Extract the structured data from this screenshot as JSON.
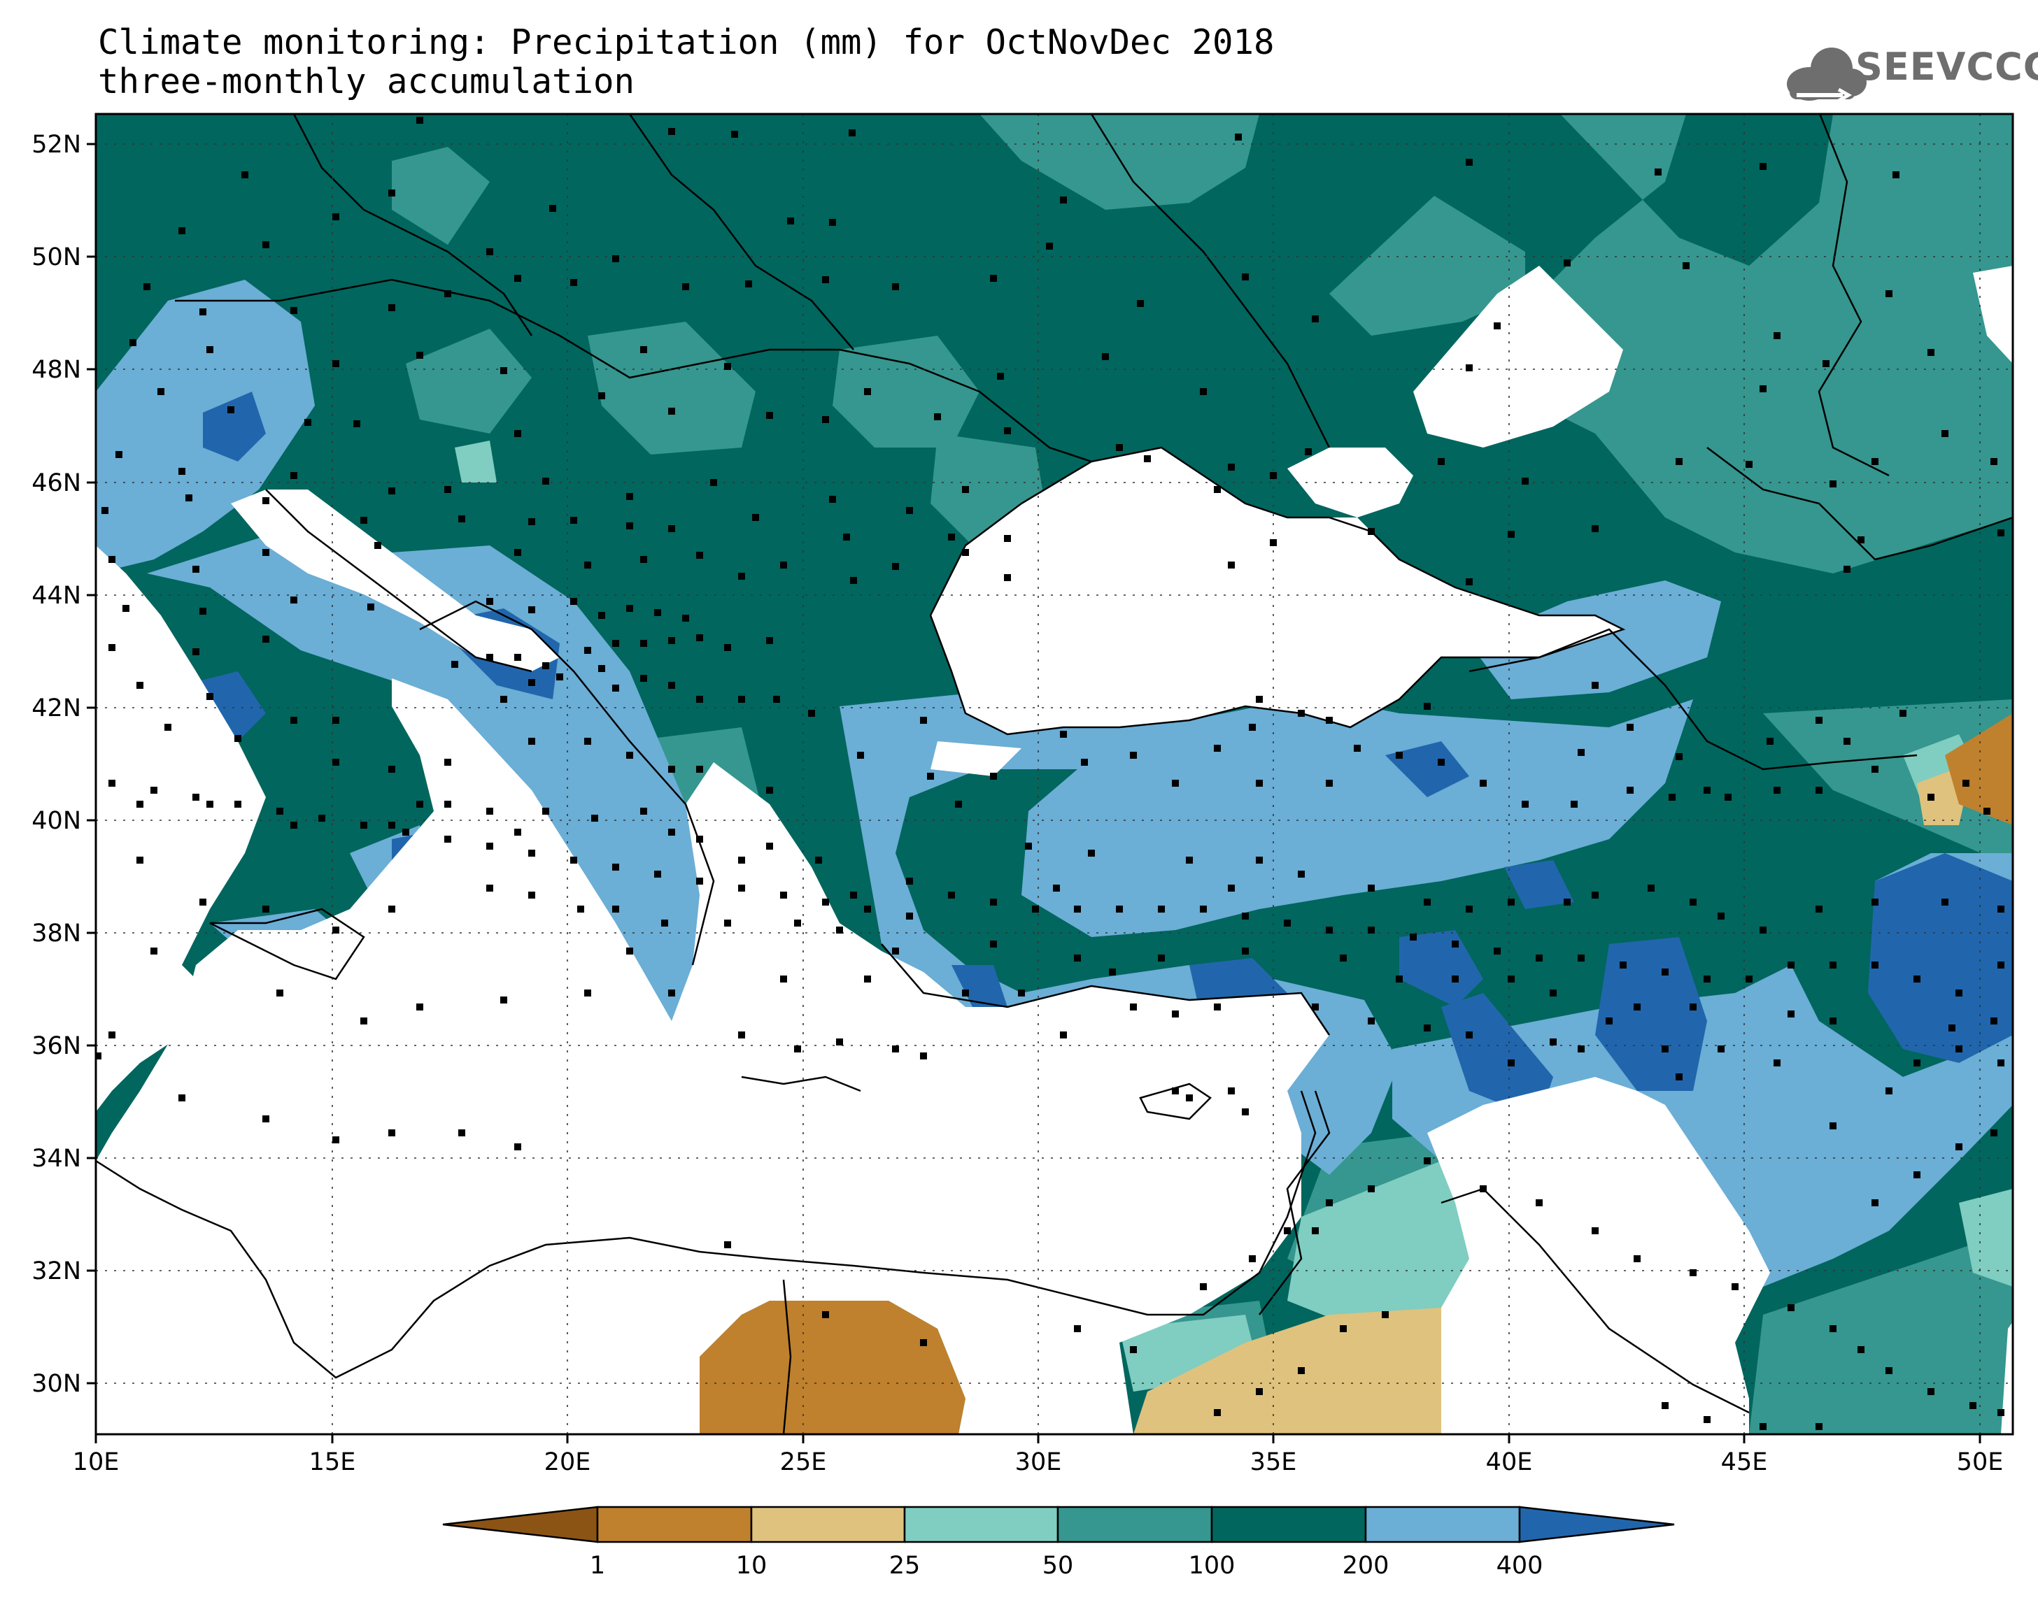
{
  "title_line1": "Climate monitoring: Precipitation (mm) for OctNovDec 2018",
  "title_line2": "three-monthly accumulation",
  "logo_text": "SEEVCCC",
  "logo_icon": "cloud-icon",
  "latitude_labels": [
    "52N",
    "50N",
    "48N",
    "46N",
    "44N",
    "42N",
    "40N",
    "38N",
    "36N",
    "34N",
    "32N",
    "30N"
  ],
  "longitude_labels": [
    "10E",
    "15E",
    "20E",
    "25E",
    "30E",
    "35E",
    "40E",
    "45E",
    "50E"
  ],
  "map_extent": {
    "lon": [
      10,
      51
    ],
    "lat": [
      29,
      52.5
    ]
  },
  "colorbar": {
    "tick_labels": [
      "1",
      "10",
      "25",
      "50",
      "100",
      "200",
      "400"
    ],
    "bin_colors": [
      "#8b5414",
      "#bf812d",
      "#dfc27d",
      "#80cdc1",
      "#35978f",
      "#01665e",
      "#6baed6",
      "#2166ac"
    ]
  },
  "precip_colors": {
    "land_default": "#01665e",
    "band_50_100": "#35978f",
    "band_25_50": "#80cdc1",
    "band_10_25": "#dfc27d",
    "band_1_10": "#bf812d",
    "band_200_400": "#6baed6",
    "band_400_plus": "#2166ac",
    "sea_no_data": "#ffffff"
  },
  "station_marker": "black-square"
}
